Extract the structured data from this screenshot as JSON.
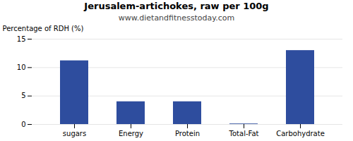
{
  "chart_data": {
    "type": "bar",
    "title": "Jerusalem-artichokes, raw per 100g",
    "subtitle": "www.dietandfitnesstoday.com",
    "categories": [
      "sugars",
      "Energy",
      "Protein",
      "Total-Fat",
      "Carbohydrate"
    ],
    "values": [
      11.2,
      4.0,
      4.0,
      0.1,
      13.0
    ],
    "color": "#2e4d9e",
    "ylabel": "Percentage of RDH (%)",
    "ylim": [
      0,
      15
    ],
    "yticks": [
      0,
      5,
      10,
      15
    ],
    "grid": true
  }
}
